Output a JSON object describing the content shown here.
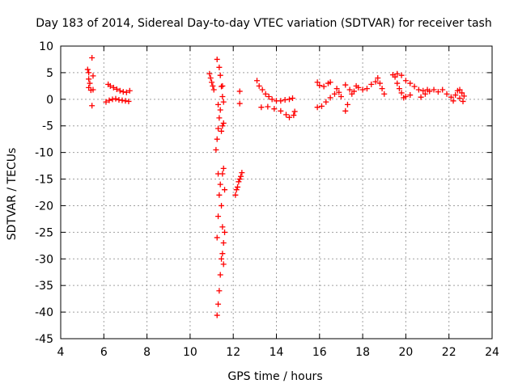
{
  "chart_data": {
    "type": "scatter",
    "title": "Day 183 of 2014, Sidereal Day-to-day VTEC variation (SDTVAR) for receiver tash",
    "xlabel": "GPS time / hours",
    "ylabel": "SDTVAR / TECUs",
    "xlim": [
      4,
      24
    ],
    "ylim": [
      -45,
      10
    ],
    "xticks": [
      4,
      6,
      8,
      10,
      12,
      14,
      16,
      18,
      20,
      22,
      24
    ],
    "yticks": [
      10,
      5,
      0,
      -5,
      -10,
      -15,
      -20,
      -25,
      -30,
      -35,
      -40,
      -45
    ],
    "grid": true,
    "marker": "+",
    "series": [
      {
        "name": "SDTVAR",
        "color": "#ff0000",
        "points": [
          [
            5.25,
            5.6
          ],
          [
            5.3,
            5.0
          ],
          [
            5.3,
            3.8
          ],
          [
            5.35,
            3.0
          ],
          [
            5.3,
            2.2
          ],
          [
            5.4,
            1.7
          ],
          [
            5.5,
            1.8
          ],
          [
            5.45,
            7.8
          ],
          [
            5.45,
            -1.2
          ],
          [
            5.5,
            4.4
          ],
          [
            6.1,
            -0.5
          ],
          [
            6.25,
            -0.2
          ],
          [
            6.4,
            0.0
          ],
          [
            6.55,
            0.1
          ],
          [
            6.7,
            -0.1
          ],
          [
            6.85,
            -0.2
          ],
          [
            7.0,
            -0.3
          ],
          [
            7.15,
            -0.4
          ],
          [
            6.2,
            2.8
          ],
          [
            6.3,
            2.5
          ],
          [
            6.45,
            2.2
          ],
          [
            6.6,
            1.9
          ],
          [
            6.75,
            1.6
          ],
          [
            6.9,
            1.4
          ],
          [
            7.05,
            1.3
          ],
          [
            7.2,
            1.6
          ],
          [
            10.9,
            4.8
          ],
          [
            10.95,
            4.0
          ],
          [
            11.0,
            3.2
          ],
          [
            11.05,
            2.5
          ],
          [
            11.1,
            1.8
          ],
          [
            11.25,
            7.5
          ],
          [
            11.35,
            6.0
          ],
          [
            11.4,
            4.5
          ],
          [
            11.45,
            2.4
          ],
          [
            11.5,
            0.5
          ],
          [
            11.55,
            -0.5
          ],
          [
            11.3,
            -1.0
          ],
          [
            11.2,
            -9.5
          ],
          [
            11.25,
            -7.5
          ],
          [
            11.3,
            -5.5
          ],
          [
            11.35,
            -3.5
          ],
          [
            11.4,
            -2.0
          ],
          [
            11.45,
            -6.0
          ],
          [
            11.5,
            -5.0
          ],
          [
            11.55,
            -4.5
          ],
          [
            11.3,
            -14.0
          ],
          [
            11.35,
            -18.0
          ],
          [
            11.3,
            -22.0
          ],
          [
            11.25,
            -26.0
          ],
          [
            11.4,
            -16.0
          ],
          [
            11.45,
            -20.0
          ],
          [
            11.5,
            -14.0
          ],
          [
            11.55,
            -13.0
          ],
          [
            11.6,
            -17.0
          ],
          [
            11.5,
            -24.0
          ],
          [
            11.55,
            -27.0
          ],
          [
            11.6,
            -25.0
          ],
          [
            11.45,
            -30.0
          ],
          [
            11.4,
            -33.0
          ],
          [
            11.35,
            -36.0
          ],
          [
            11.3,
            -38.5
          ],
          [
            11.25,
            -40.6
          ],
          [
            11.5,
            -29.0
          ],
          [
            11.55,
            -31.0
          ],
          [
            12.1,
            -18.0
          ],
          [
            12.15,
            -17.0
          ],
          [
            12.2,
            -16.5
          ],
          [
            12.25,
            -15.5
          ],
          [
            12.3,
            -15.0
          ],
          [
            12.35,
            -14.5
          ],
          [
            12.4,
            -13.8
          ],
          [
            11.5,
            2.5
          ],
          [
            12.3,
            1.5
          ],
          [
            12.3,
            -0.8
          ],
          [
            13.1,
            3.5
          ],
          [
            13.2,
            2.5
          ],
          [
            13.35,
            1.8
          ],
          [
            13.5,
            1.0
          ],
          [
            13.65,
            0.5
          ],
          [
            13.8,
            0.0
          ],
          [
            14.0,
            -0.3
          ],
          [
            14.2,
            -0.3
          ],
          [
            14.4,
            -0.1
          ],
          [
            14.6,
            0.0
          ],
          [
            14.75,
            0.2
          ],
          [
            13.3,
            -1.5
          ],
          [
            13.6,
            -1.4
          ],
          [
            13.9,
            -1.8
          ],
          [
            14.2,
            -2.2
          ],
          [
            14.45,
            -2.9
          ],
          [
            14.6,
            -3.4
          ],
          [
            14.8,
            -3.0
          ],
          [
            14.85,
            -2.3
          ],
          [
            15.9,
            3.2
          ],
          [
            16.0,
            2.6
          ],
          [
            16.2,
            2.4
          ],
          [
            16.4,
            3.0
          ],
          [
            16.5,
            3.2
          ],
          [
            15.9,
            -1.5
          ],
          [
            16.1,
            -1.3
          ],
          [
            16.3,
            -0.5
          ],
          [
            16.5,
            0.3
          ],
          [
            16.7,
            1.0
          ],
          [
            16.9,
            1.3
          ],
          [
            16.8,
            2.0
          ],
          [
            17.0,
            0.5
          ],
          [
            17.2,
            -2.2
          ],
          [
            17.3,
            -1.0
          ],
          [
            17.5,
            1.0
          ],
          [
            17.7,
            2.5
          ],
          [
            17.2,
            2.7
          ],
          [
            17.4,
            1.8
          ],
          [
            17.6,
            1.5
          ],
          [
            17.8,
            2.2
          ],
          [
            18.0,
            1.8
          ],
          [
            18.2,
            2.0
          ],
          [
            18.4,
            2.8
          ],
          [
            18.6,
            3.3
          ],
          [
            18.7,
            4.0
          ],
          [
            18.8,
            3.0
          ],
          [
            18.9,
            2.0
          ],
          [
            19.0,
            1.0
          ],
          [
            19.4,
            4.6
          ],
          [
            19.5,
            4.2
          ],
          [
            19.6,
            3.0
          ],
          [
            19.7,
            2.0
          ],
          [
            19.8,
            1.2
          ],
          [
            19.9,
            0.3
          ],
          [
            20.0,
            0.5
          ],
          [
            20.2,
            0.8
          ],
          [
            19.6,
            4.8
          ],
          [
            19.8,
            4.5
          ],
          [
            20.0,
            3.5
          ],
          [
            20.2,
            3.0
          ],
          [
            20.4,
            2.4
          ],
          [
            20.6,
            1.8
          ],
          [
            20.8,
            1.6
          ],
          [
            21.0,
            1.8
          ],
          [
            20.7,
            0.4
          ],
          [
            20.9,
            1.0
          ],
          [
            21.1,
            1.5
          ],
          [
            21.3,
            1.8
          ],
          [
            21.5,
            1.4
          ],
          [
            21.7,
            1.8
          ],
          [
            21.9,
            1.0
          ],
          [
            22.1,
            0.4
          ],
          [
            22.2,
            -0.3
          ],
          [
            22.3,
            0.8
          ],
          [
            22.4,
            1.6
          ],
          [
            22.5,
            1.8
          ],
          [
            22.6,
            1.2
          ],
          [
            22.7,
            0.6
          ],
          [
            22.65,
            -0.4
          ],
          [
            22.5,
            0.2
          ]
        ]
      }
    ]
  }
}
